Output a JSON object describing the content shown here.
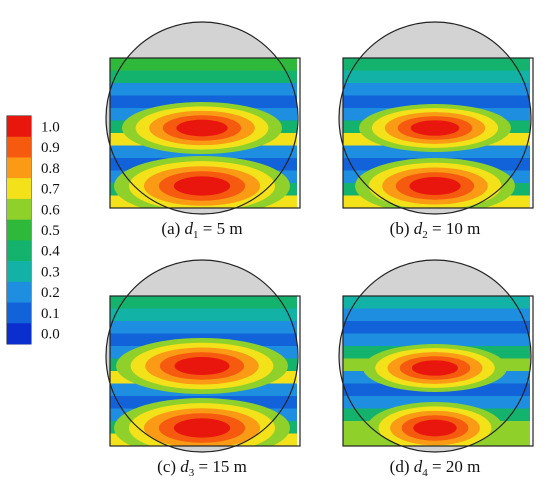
{
  "colorbar": {
    "labels": [
      "1.0",
      "0.9",
      "0.8",
      "0.7",
      "0.6",
      "0.5",
      "0.4",
      "0.3",
      "0.2",
      "0.1",
      "0.0"
    ],
    "colors": [
      "#e8160c",
      "#f55a0f",
      "#fb9a14",
      "#f3e21a",
      "#8fd12a",
      "#2fb93a",
      "#14b36d",
      "#12b3a6",
      "#1e8ee0",
      "#1262d9",
      "#0b2fcf"
    ]
  },
  "panels": [
    {
      "id": "a",
      "prefix": "(a) ",
      "var": "d",
      "sub": "1",
      "eq": " = 5 m"
    },
    {
      "id": "b",
      "prefix": "(b) ",
      "var": "d",
      "sub": "2",
      "eq": " = 10 m"
    },
    {
      "id": "c",
      "prefix": "(c) ",
      "var": "d",
      "sub": "3",
      "eq": " = 15 m"
    },
    {
      "id": "d",
      "prefix": "(d) ",
      "var": "d",
      "sub": "4",
      "eq": " = 20 m"
    }
  ],
  "colors": {
    "tunnel_fill": "#d3d3d3",
    "outline": "#222222"
  }
}
